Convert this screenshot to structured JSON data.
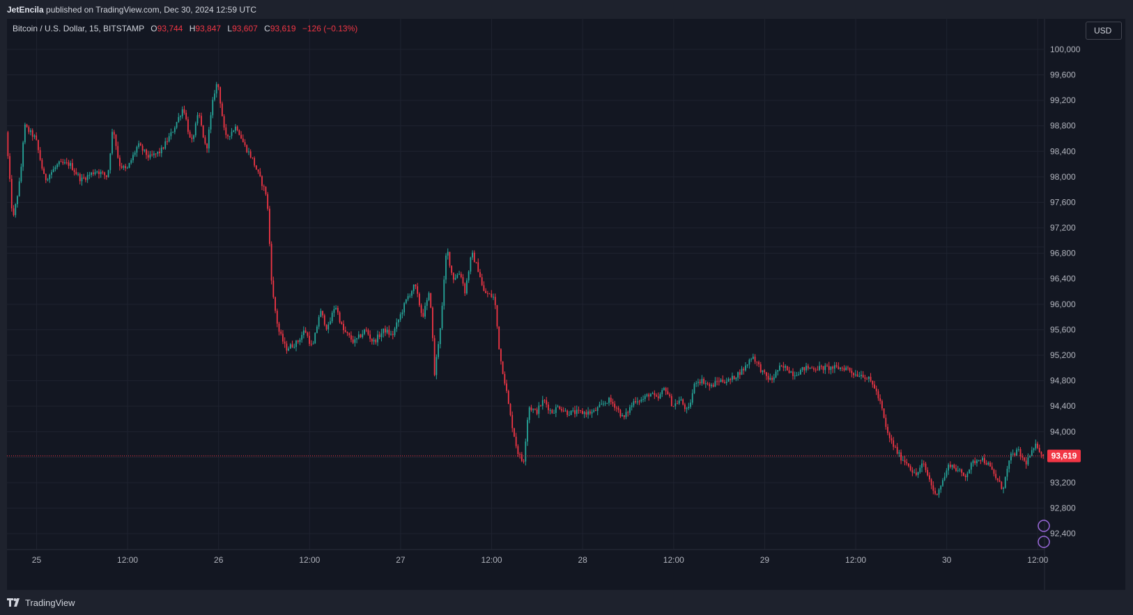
{
  "header": {
    "publisher": "JetEncila",
    "published_text": "published on TradingView.com, Dec 30, 2024 12:59 UTC"
  },
  "legend": {
    "symbol": "Bitcoin / U.S. Dollar, 15, BITSTAMP",
    "open_label": "O",
    "open": "93,744",
    "high_label": "H",
    "high": "93,847",
    "low_label": "L",
    "low": "93,607",
    "close_label": "C",
    "close": "93,619",
    "change": "−126 (−0.13%)"
  },
  "currency": "USD",
  "brand": "TradingView",
  "colors": {
    "up": "#26a69a",
    "down": "#f23645",
    "background": "#131722",
    "grid": "#1f2330",
    "price_label": "#f23645"
  },
  "chart_data": {
    "type": "candlestick",
    "interval": "15",
    "current_price": 93619,
    "current_price_label": "93,619",
    "y_ticks": [
      {
        "v": 100000,
        "label": "100,000"
      },
      {
        "v": 99600,
        "label": "99,600"
      },
      {
        "v": 99200,
        "label": "99,200"
      },
      {
        "v": 98800,
        "label": "98,800"
      },
      {
        "v": 98400,
        "label": "98,400"
      },
      {
        "v": 98000,
        "label": "98,000"
      },
      {
        "v": 97600,
        "label": "97,600"
      },
      {
        "v": 97200,
        "label": "97,200"
      },
      {
        "v": 96800,
        "label": "96,800"
      },
      {
        "v": 96400,
        "label": "96,400"
      },
      {
        "v": 96000,
        "label": "96,000"
      },
      {
        "v": 95600,
        "label": "95,600"
      },
      {
        "v": 95200,
        "label": "95,200"
      },
      {
        "v": 94800,
        "label": "94,800"
      },
      {
        "v": 94400,
        "label": "94,400"
      },
      {
        "v": 94000,
        "label": "94,000"
      },
      {
        "v": 93200,
        "label": "93,200"
      },
      {
        "v": 92800,
        "label": "92,800"
      },
      {
        "v": 92400,
        "label": "92,400"
      }
    ],
    "ylim": [
      92150,
      100480
    ],
    "x_ticks": [
      {
        "t": 24,
        "label": "25"
      },
      {
        "t": 36,
        "label": "12:00"
      },
      {
        "t": 48,
        "label": "26"
      },
      {
        "t": 60,
        "label": "12:00"
      },
      {
        "t": 72,
        "label": "27"
      },
      {
        "t": 84,
        "label": "12:00"
      },
      {
        "t": 96,
        "label": "28"
      },
      {
        "t": 108,
        "label": "12:00"
      },
      {
        "t": 120,
        "label": "29"
      },
      {
        "t": 132,
        "label": "12:00"
      },
      {
        "t": 144,
        "label": "30"
      },
      {
        "t": 156,
        "label": "12:00"
      }
    ],
    "xlim": [
      20.1,
      156.8
    ],
    "path": [
      [
        20.1,
        98700
      ],
      [
        21.0,
        97300
      ],
      [
        22.0,
        98000
      ],
      [
        22.5,
        98800
      ],
      [
        24.0,
        98600
      ],
      [
        25.2,
        97950
      ],
      [
        27.0,
        98200
      ],
      [
        28.5,
        98200
      ],
      [
        30.0,
        97950
      ],
      [
        32.0,
        98100
      ],
      [
        33.5,
        98000
      ],
      [
        34.2,
        98800
      ],
      [
        35.0,
        98200
      ],
      [
        36.0,
        98100
      ],
      [
        37.5,
        98500
      ],
      [
        39.0,
        98300
      ],
      [
        40.5,
        98400
      ],
      [
        42.0,
        98700
      ],
      [
        43.5,
        99100
      ],
      [
        44.5,
        98500
      ],
      [
        45.5,
        99000
      ],
      [
        46.5,
        98400
      ],
      [
        47.5,
        99300
      ],
      [
        48.0,
        99500
      ],
      [
        49.0,
        98600
      ],
      [
        50.5,
        98800
      ],
      [
        51.5,
        98500
      ],
      [
        52.5,
        98300
      ],
      [
        53.5,
        98000
      ],
      [
        54.5,
        97700
      ],
      [
        55.2,
        96200
      ],
      [
        56.0,
        95600
      ],
      [
        57.0,
        95300
      ],
      [
        58.5,
        95400
      ],
      [
        59.5,
        95600
      ],
      [
        60.5,
        95300
      ],
      [
        61.5,
        95900
      ],
      [
        62.5,
        95600
      ],
      [
        63.5,
        96000
      ],
      [
        64.5,
        95600
      ],
      [
        66.0,
        95400
      ],
      [
        67.5,
        95600
      ],
      [
        68.5,
        95400
      ],
      [
        70.0,
        95600
      ],
      [
        71.0,
        95500
      ],
      [
        72.0,
        95800
      ],
      [
        73.0,
        96100
      ],
      [
        74.0,
        96300
      ],
      [
        75.0,
        95800
      ],
      [
        76.0,
        96200
      ],
      [
        76.6,
        94900
      ],
      [
        77.5,
        95800
      ],
      [
        78.2,
        96900
      ],
      [
        79.0,
        96400
      ],
      [
        80.0,
        96500
      ],
      [
        80.6,
        96200
      ],
      [
        81.5,
        96800
      ],
      [
        82.5,
        96500
      ],
      [
        83.0,
        96200
      ],
      [
        84.5,
        96100
      ],
      [
        85.2,
        95200
      ],
      [
        86.0,
        94700
      ],
      [
        86.5,
        94300
      ],
      [
        87.5,
        93700
      ],
      [
        88.3,
        93500
      ],
      [
        89.0,
        94400
      ],
      [
        90.0,
        94300
      ],
      [
        91.0,
        94500
      ],
      [
        92.0,
        94300
      ],
      [
        93.0,
        94400
      ],
      [
        94.0,
        94300
      ],
      [
        95.0,
        94300
      ],
      [
        96.5,
        94300
      ],
      [
        97.5,
        94300
      ],
      [
        98.5,
        94400
      ],
      [
        99.5,
        94500
      ],
      [
        100.5,
        94400
      ],
      [
        101.5,
        94200
      ],
      [
        103.0,
        94500
      ],
      [
        104.0,
        94500
      ],
      [
        105.0,
        94600
      ],
      [
        106.0,
        94500
      ],
      [
        107.0,
        94700
      ],
      [
        108.0,
        94400
      ],
      [
        109.0,
        94500
      ],
      [
        110.0,
        94300
      ],
      [
        111.0,
        94800
      ],
      [
        112.0,
        94800
      ],
      [
        113.0,
        94700
      ],
      [
        114.0,
        94800
      ],
      [
        115.5,
        94800
      ],
      [
        116.5,
        94900
      ],
      [
        117.5,
        95000
      ],
      [
        118.5,
        95200
      ],
      [
        120.0,
        94900
      ],
      [
        121.0,
        94800
      ],
      [
        122.0,
        95000
      ],
      [
        123.0,
        95000
      ],
      [
        124.0,
        94900
      ],
      [
        125.5,
        95000
      ],
      [
        126.5,
        95000
      ],
      [
        128.0,
        95000
      ],
      [
        129.5,
        95000
      ],
      [
        131.0,
        95000
      ],
      [
        132.0,
        94900
      ],
      [
        133.0,
        94900
      ],
      [
        134.0,
        94800
      ],
      [
        134.6,
        94700
      ],
      [
        135.5,
        94400
      ],
      [
        136.2,
        94000
      ],
      [
        137.0,
        93800
      ],
      [
        138.0,
        93600
      ],
      [
        139.0,
        93500
      ],
      [
        140.0,
        93300
      ],
      [
        141.0,
        93500
      ],
      [
        142.0,
        93200
      ],
      [
        142.6,
        93000
      ],
      [
        143.5,
        93200
      ],
      [
        144.5,
        93500
      ],
      [
        145.5,
        93400
      ],
      [
        146.5,
        93300
      ],
      [
        147.5,
        93500
      ],
      [
        148.5,
        93600
      ],
      [
        149.5,
        93500
      ],
      [
        150.5,
        93300
      ],
      [
        151.5,
        93100
      ],
      [
        152.5,
        93600
      ],
      [
        153.5,
        93700
      ],
      [
        154.5,
        93500
      ],
      [
        155.5,
        93700
      ],
      [
        156.0,
        93800
      ],
      [
        156.8,
        93619
      ]
    ]
  }
}
